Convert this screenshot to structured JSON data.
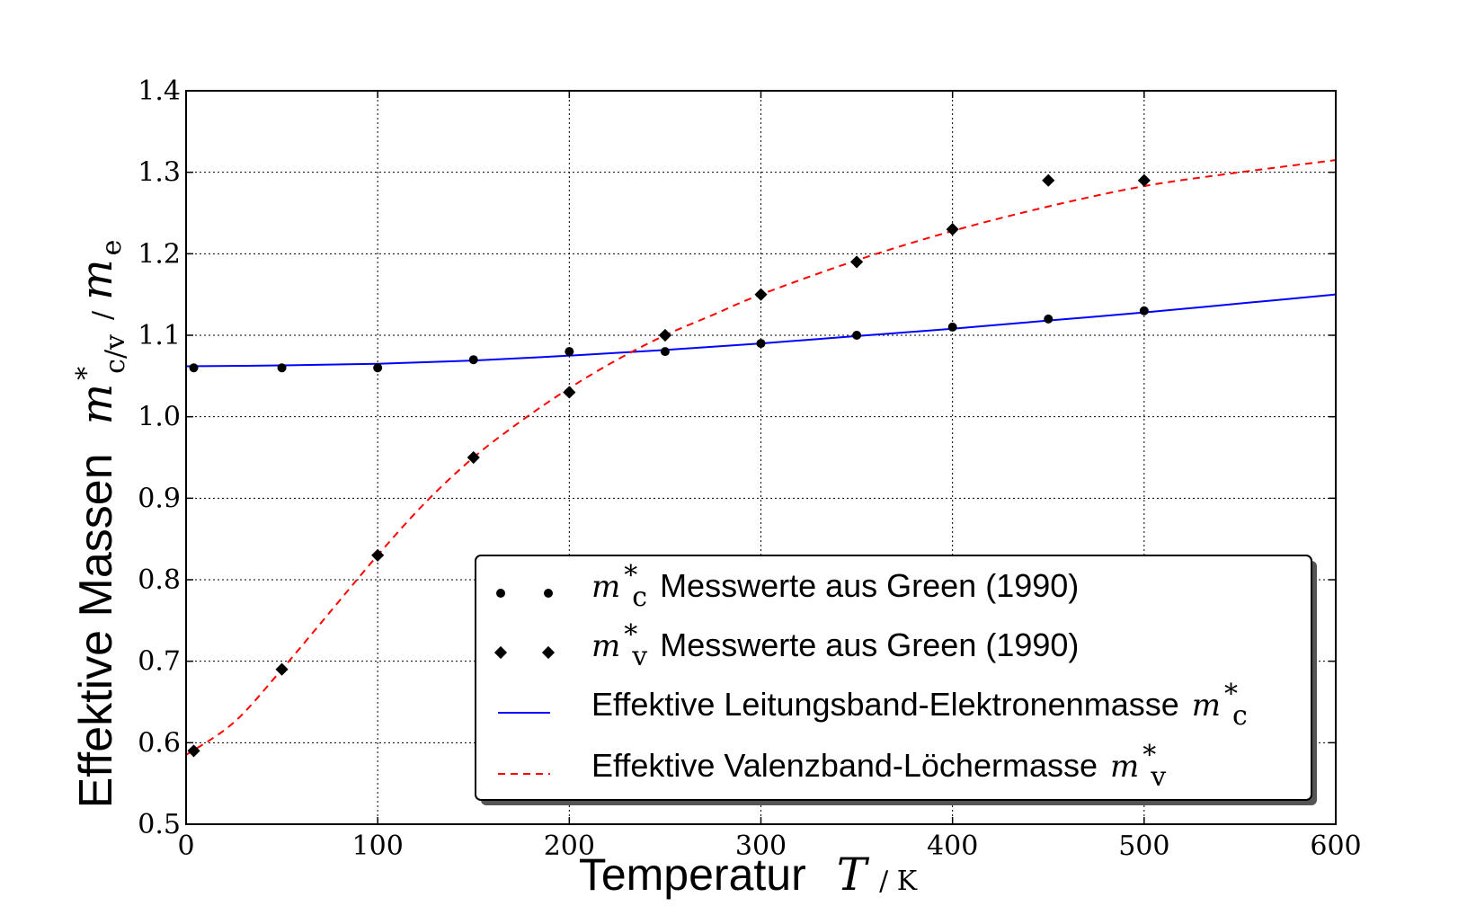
{
  "chart_data": {
    "type": "line",
    "xlabel": {
      "text": "Temperatur",
      "symbol": "T",
      "unit": "/ K"
    },
    "ylabel": {
      "text": "Effektive Massen",
      "symbol": "m",
      "superscript": "*",
      "subscript": "c/v",
      "unit": "/ m",
      "unit_subscript": "e"
    },
    "xlim": [
      0,
      600
    ],
    "ylim": [
      0.5,
      1.4
    ],
    "x_ticks": [
      "0",
      "100",
      "200",
      "300",
      "400",
      "500",
      "600"
    ],
    "y_ticks": [
      "0.5",
      "0.6",
      "0.7",
      "0.8",
      "0.9",
      "1.0",
      "1.1",
      "1.2",
      "1.3",
      "1.4"
    ],
    "grid": true,
    "legend_position": "lower-right",
    "series": [
      {
        "name": "Messwerte aus Green (1990)",
        "symbol": "m",
        "subscript": "c",
        "marker": "circle",
        "color": "#000000",
        "x": [
          4,
          50,
          100,
          150,
          200,
          250,
          300,
          350,
          400,
          450,
          500
        ],
        "y": [
          1.06,
          1.06,
          1.06,
          1.07,
          1.08,
          1.08,
          1.09,
          1.1,
          1.11,
          1.12,
          1.13
        ]
      },
      {
        "name": "Messwerte aus Green (1990)",
        "symbol": "m",
        "subscript": "v",
        "marker": "diamond",
        "color": "#000000",
        "x": [
          4,
          50,
          100,
          150,
          200,
          250,
          300,
          350,
          400,
          450,
          500
        ],
        "y": [
          0.59,
          0.69,
          0.83,
          0.95,
          1.03,
          1.1,
          1.15,
          1.19,
          1.23,
          1.29,
          1.29
        ]
      },
      {
        "name": "Effektive Leitungsband-Elektronenmasse",
        "symbol": "m",
        "subscript": "c",
        "line_style": "solid",
        "color": "#0000ff",
        "x": [
          0,
          50,
          100,
          150,
          200,
          250,
          300,
          350,
          400,
          450,
          500,
          550,
          600
        ],
        "y": [
          1.062,
          1.063,
          1.065,
          1.069,
          1.075,
          1.082,
          1.09,
          1.099,
          1.108,
          1.118,
          1.128,
          1.139,
          1.15
        ]
      },
      {
        "name": "Effektive Valenzband-Löchermasse",
        "symbol": "m",
        "subscript": "v",
        "line_style": "dashed",
        "color": "#ff0000",
        "x": [
          0,
          25,
          50,
          75,
          100,
          125,
          150,
          175,
          200,
          225,
          250,
          275,
          300,
          350,
          400,
          450,
          500,
          550,
          600
        ],
        "y": [
          0.585,
          0.625,
          0.69,
          0.76,
          0.83,
          0.895,
          0.95,
          0.995,
          1.035,
          1.07,
          1.1,
          1.125,
          1.15,
          1.192,
          1.228,
          1.258,
          1.283,
          1.3,
          1.315
        ]
      }
    ]
  }
}
